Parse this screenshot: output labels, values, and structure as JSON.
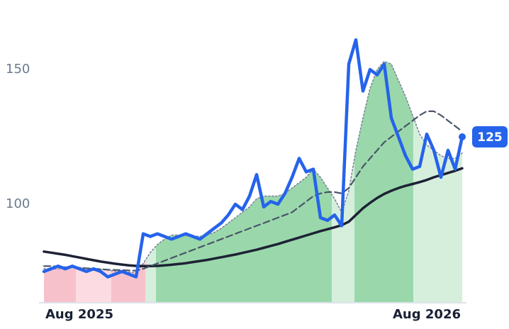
{
  "chart_data": {
    "type": "line",
    "x": [
      0,
      1,
      2,
      3,
      4,
      5,
      6,
      7,
      8,
      9,
      10,
      11,
      12,
      13,
      14,
      15,
      16,
      17,
      18,
      19,
      20,
      21,
      22,
      23,
      24,
      25,
      26,
      27,
      28,
      29,
      30,
      31,
      32,
      33,
      34,
      35,
      36,
      37,
      38,
      39,
      40,
      41,
      42,
      43,
      44,
      45,
      46,
      47,
      48,
      49,
      50,
      51,
      52,
      53,
      54,
      55,
      56,
      57,
      58,
      59
    ],
    "xlim": [
      0,
      59
    ],
    "xticks": [
      {
        "value": 5,
        "label": "Aug 2025"
      },
      {
        "value": 54,
        "label": "Aug 2026"
      }
    ],
    "ylim": [
      63.4,
      175.8
    ],
    "yticks": [
      100,
      150
    ],
    "regions": [
      {
        "start": 0,
        "end": 4.5,
        "color": "#f7c1cc"
      },
      {
        "start": 4.5,
        "end": 9.5,
        "color": "#fcdce2"
      },
      {
        "start": 9.5,
        "end": 14.3,
        "color": "#f7c1cc"
      },
      {
        "start": 14.3,
        "end": 15.8,
        "color": "#d6efdd"
      },
      {
        "start": 15.8,
        "end": 40.6,
        "color": "#9ad8ab"
      },
      {
        "start": 40.6,
        "end": 43.8,
        "color": "#d6efdd"
      },
      {
        "start": 43.8,
        "end": 52.1,
        "color": "#9ad8ab"
      },
      {
        "start": 52.1,
        "end": 59,
        "color": "#d6efdd"
      }
    ],
    "series": [
      {
        "color": "#7a8599",
        "dash": "dotted",
        "values": [
          76,
          76,
          76,
          76.5,
          76.5,
          76.5,
          76.2,
          76,
          75.8,
          75.5,
          75.2,
          75,
          74.8,
          74.5,
          78,
          82,
          85,
          87,
          88.5,
          88.5,
          88.3,
          88.2,
          88,
          88.5,
          89.5,
          91,
          93,
          95,
          97,
          99,
          102,
          103,
          103,
          103,
          104,
          106,
          108,
          110,
          113,
          110,
          106,
          102,
          97,
          105,
          120,
          132,
          143,
          150,
          153,
          152,
          146,
          140,
          133,
          126,
          122,
          120,
          118,
          117,
          117,
          119
        ]
      },
      {
        "color": "#1e2235",
        "dash": "solid",
        "values": [
          82.4,
          82,
          81.6,
          81.2,
          80.7,
          80.2,
          79.7,
          79.2,
          78.7,
          78.3,
          77.9,
          77.6,
          77.3,
          77.1,
          77,
          77,
          77.1,
          77.3,
          77.5,
          77.8,
          78.1,
          78.5,
          78.9,
          79.3,
          79.8,
          80.3,
          80.8,
          81.3,
          81.9,
          82.5,
          83.1,
          83.8,
          84.5,
          85.2,
          86,
          86.8,
          87.6,
          88.4,
          89.2,
          90,
          90.7,
          91.4,
          92.2,
          93.5,
          96,
          98.5,
          100.5,
          102.3,
          103.8,
          105,
          106,
          106.8,
          107.5,
          108.2,
          109,
          110,
          110.8,
          111.6,
          112.4,
          113.3
        ]
      },
      {
        "color": "#4a5568",
        "dash": "dashed",
        "values": [
          77,
          77,
          76.8,
          76.6,
          76.5,
          76.4,
          76.2,
          76,
          75.9,
          75.7,
          75.6,
          75.5,
          75.4,
          75.3,
          76,
          77,
          78,
          79,
          80,
          81,
          82,
          83,
          84,
          85,
          86,
          87,
          88,
          89,
          90,
          91,
          92,
          93,
          94,
          95,
          96,
          97,
          99,
          101,
          103,
          104,
          104.5,
          104.5,
          104,
          106,
          110,
          114,
          117,
          120,
          123,
          125,
          127,
          129,
          131,
          133,
          134.5,
          134.5,
          133,
          131,
          129,
          127
        ]
      },
      {
        "color": "#2563eb",
        "dash": "solid",
        "values": [
          75,
          76,
          77,
          76,
          77,
          76,
          75,
          76,
          75,
          73,
          74,
          75,
          74,
          73,
          89,
          88,
          89,
          88,
          87,
          88,
          89,
          88,
          87,
          89,
          91,
          93,
          96,
          100,
          98,
          103,
          111,
          99,
          101,
          100,
          104,
          110,
          117,
          112,
          113,
          95,
          94,
          96,
          92,
          152,
          161,
          142,
          150,
          148,
          152,
          132,
          125,
          118,
          113,
          114,
          126,
          120,
          110,
          120,
          113,
          125
        ]
      }
    ]
  }
}
